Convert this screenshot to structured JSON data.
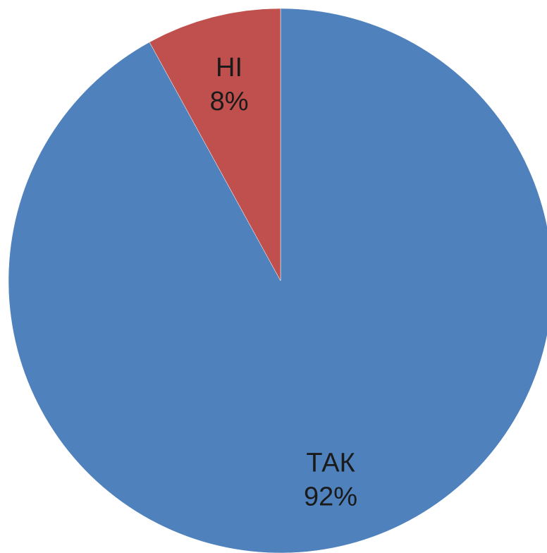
{
  "chart_data": {
    "type": "pie",
    "title": "",
    "slices": [
      {
        "label": "ТАК",
        "value": 92,
        "value_label": "92%",
        "color": "#4F81BD"
      },
      {
        "label": "НІ",
        "value": 8,
        "value_label": "8%",
        "color": "#C0504D"
      }
    ],
    "start_angle_deg": 0,
    "direction": "clockwise",
    "legend": "none",
    "data_labels": "inside"
  }
}
